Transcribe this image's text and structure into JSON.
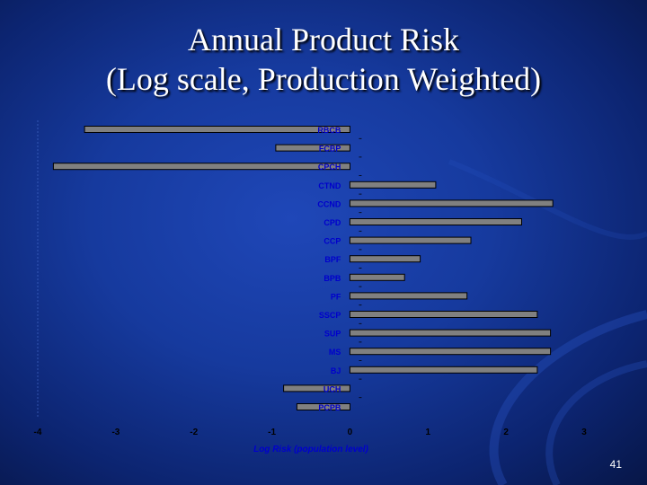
{
  "slide": {
    "title_line1": "Annual Product Risk",
    "title_line2": "(Log scale, Production Weighted)",
    "page_number": "41"
  },
  "colors": {
    "bar_fill": "#808080",
    "bar_stroke": "#000000",
    "label_color": "#0000cc",
    "tick_color": "#000000",
    "background": "#163a9e"
  },
  "chart_data": {
    "type": "bar",
    "orientation": "horizontal",
    "categories": [
      "RBCB",
      "FCBP",
      "CPCH",
      "CTND",
      "CCND",
      "CPD",
      "CCP",
      "BPF",
      "BPB",
      "PF",
      "SSCP",
      "SUP",
      "MS",
      "BJ",
      "UCH",
      "PCPB"
    ],
    "values": [
      -3.4,
      -0.95,
      -3.8,
      1.1,
      2.6,
      2.2,
      1.55,
      0.9,
      0.7,
      1.5,
      2.4,
      2.57,
      2.57,
      2.4,
      -0.85,
      -0.68
    ],
    "xlabel": "Log Risk (population level)",
    "ylabel": "",
    "xlim": [
      -4,
      3
    ],
    "xticks": [
      "-4",
      "-3",
      "-2",
      "-1",
      "0",
      "1",
      "2",
      "3"
    ],
    "grid": false,
    "legend": "none"
  }
}
